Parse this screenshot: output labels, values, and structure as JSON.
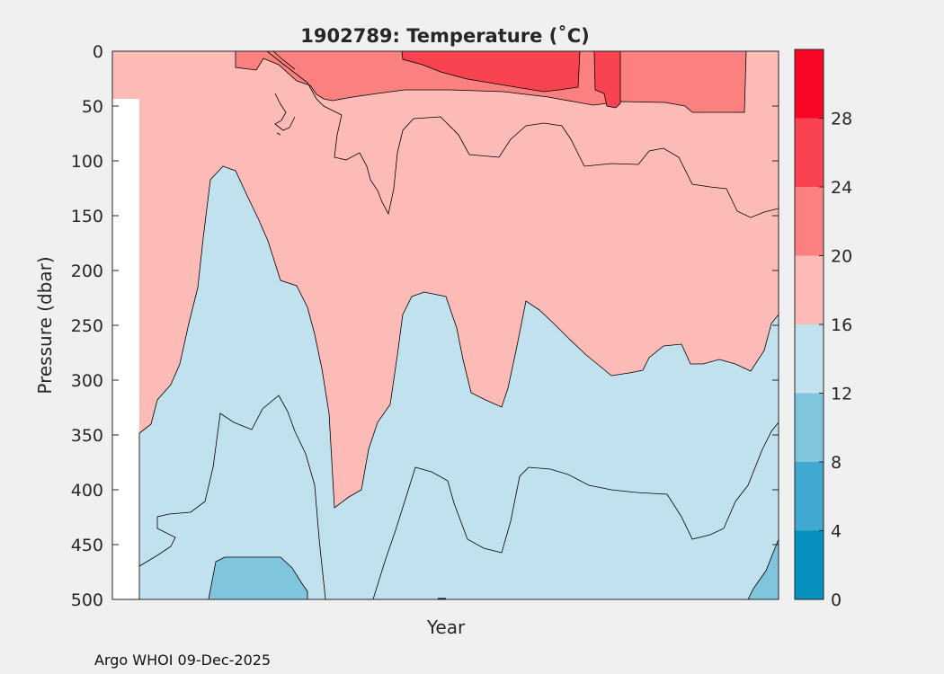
{
  "chart_data": {
    "type": "filled-contour",
    "title": "1902789:  Temperature (˚C)",
    "xlabel": "Year",
    "ylabel": "Pressure (dbar)",
    "ylim": [
      0,
      500
    ],
    "y_inverted": true,
    "y_ticks": [
      "0",
      "50",
      "100",
      "150",
      "200",
      "250",
      "300",
      "350",
      "400",
      "450",
      "500"
    ],
    "x_ticks": [],
    "colorbar": {
      "ticks": [
        "0",
        "4",
        "8",
        "12",
        "16",
        "20",
        "24",
        "28"
      ],
      "range": [
        0,
        32
      ],
      "levels": [
        {
          "range": [
            0,
            4
          ],
          "color": "#0590bd"
        },
        {
          "range": [
            4,
            8
          ],
          "color": "#40a9d0"
        },
        {
          "range": [
            8,
            12
          ],
          "color": "#80c5de"
        },
        {
          "range": [
            12,
            16
          ],
          "color": "#c0e1ed"
        },
        {
          "range": [
            16,
            20
          ],
          "color": "#fdbbb8"
        },
        {
          "range": [
            20,
            24
          ],
          "color": "#fb8181"
        },
        {
          "range": [
            24,
            28
          ],
          "color": "#fa4350"
        },
        {
          "range": [
            28,
            32
          ],
          "color": "#fa0526"
        }
      ]
    },
    "contour_levels": [
      12,
      16,
      20,
      24,
      28
    ]
  },
  "footer": {
    "credit": "Argo WHOI 09-Dec-2025"
  }
}
